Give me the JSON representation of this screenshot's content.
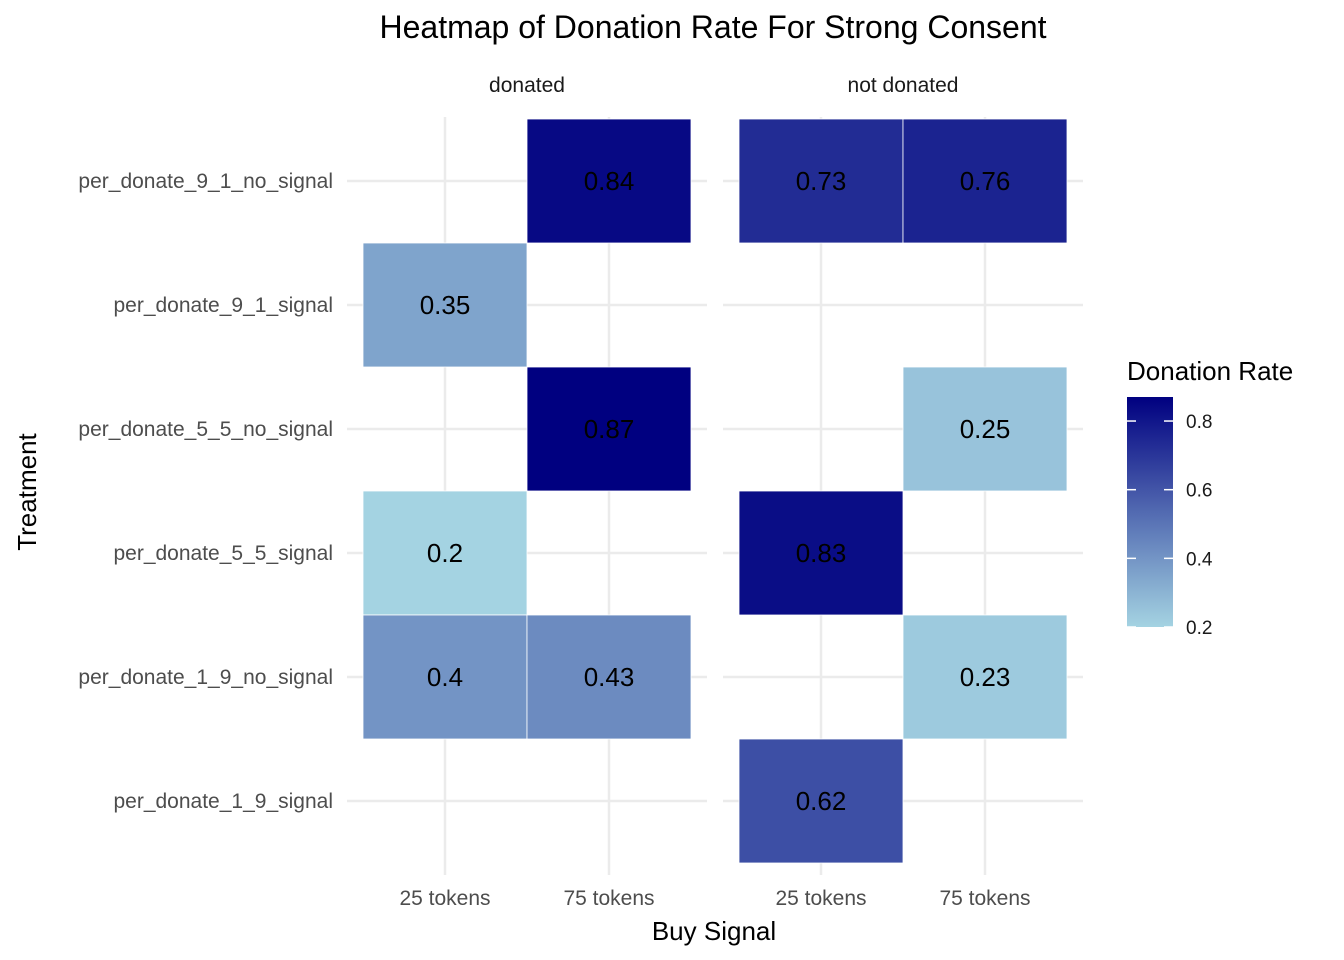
{
  "chart_data": {
    "type": "heatmap",
    "title": "Heatmap of Donation Rate For Strong Consent",
    "xlabel": "Buy Signal",
    "ylabel": "Treatment",
    "facets": [
      "donated",
      "not donated"
    ],
    "x_categories": [
      "25 tokens",
      "75 tokens"
    ],
    "y_categories": [
      "per_donate_9_1_no_signal",
      "per_donate_9_1_signal",
      "per_donate_5_5_no_signal",
      "per_donate_5_5_signal",
      "per_donate_1_9_no_signal",
      "per_donate_1_9_signal"
    ],
    "cells": [
      {
        "facet": "donated",
        "x": "75 tokens",
        "y": "per_donate_9_1_no_signal",
        "value": 0.84
      },
      {
        "facet": "donated",
        "x": "25 tokens",
        "y": "per_donate_9_1_signal",
        "value": 0.35
      },
      {
        "facet": "donated",
        "x": "75 tokens",
        "y": "per_donate_5_5_no_signal",
        "value": 0.87
      },
      {
        "facet": "donated",
        "x": "25 tokens",
        "y": "per_donate_5_5_signal",
        "value": 0.2
      },
      {
        "facet": "donated",
        "x": "25 tokens",
        "y": "per_donate_1_9_no_signal",
        "value": 0.4
      },
      {
        "facet": "donated",
        "x": "75 tokens",
        "y": "per_donate_1_9_no_signal",
        "value": 0.43
      },
      {
        "facet": "not donated",
        "x": "25 tokens",
        "y": "per_donate_9_1_no_signal",
        "value": 0.73
      },
      {
        "facet": "not donated",
        "x": "75 tokens",
        "y": "per_donate_9_1_no_signal",
        "value": 0.76
      },
      {
        "facet": "not donated",
        "x": "75 tokens",
        "y": "per_donate_5_5_no_signal",
        "value": 0.25
      },
      {
        "facet": "not donated",
        "x": "25 tokens",
        "y": "per_donate_5_5_signal",
        "value": 0.83
      },
      {
        "facet": "not donated",
        "x": "75 tokens",
        "y": "per_donate_1_9_no_signal",
        "value": 0.23
      },
      {
        "facet": "not donated",
        "x": "25 tokens",
        "y": "per_donate_1_9_signal",
        "value": 0.62
      }
    ],
    "legend": {
      "title": "Donation Rate",
      "ticks": [
        0.2,
        0.4,
        0.6,
        0.8
      ],
      "color_low": "#a4d3e2",
      "color_high": "#000080",
      "range": [
        0.2,
        0.87
      ]
    },
    "grid": true
  }
}
